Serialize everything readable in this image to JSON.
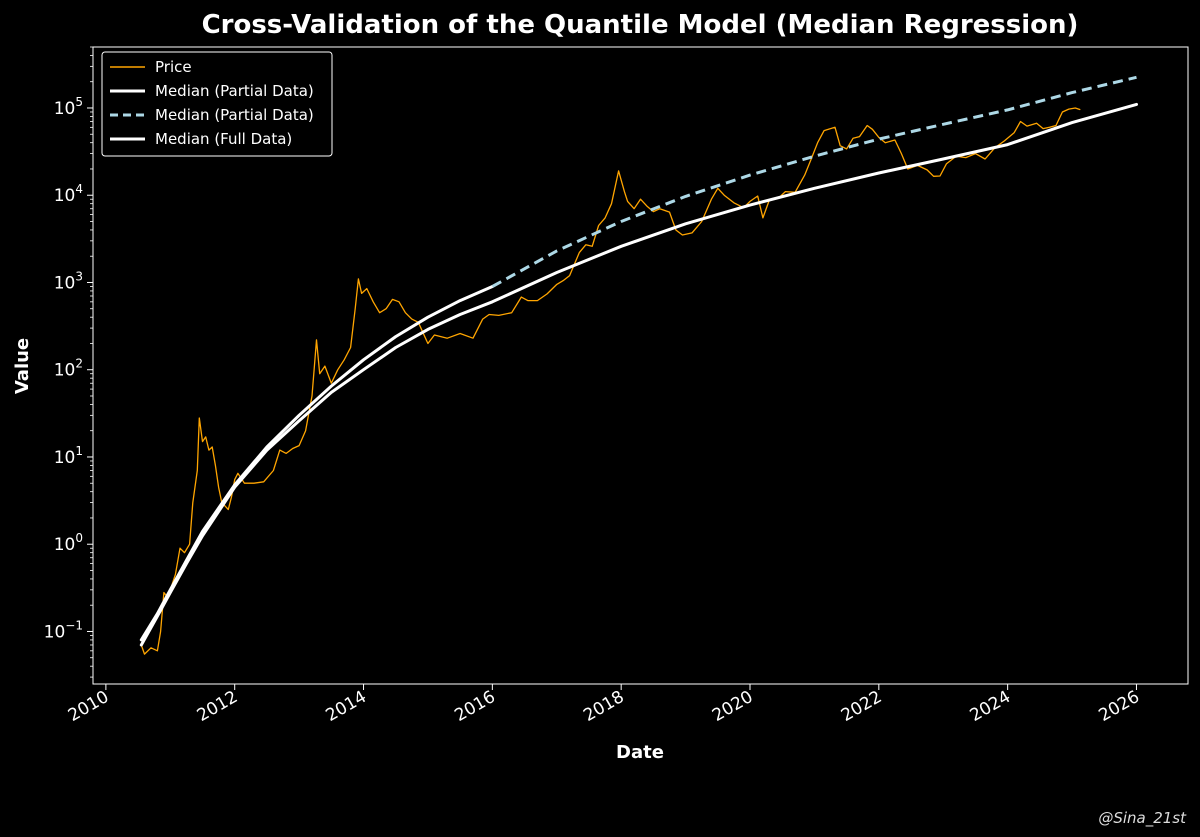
{
  "chart_data": {
    "type": "line",
    "title": "Cross-Validation of the Quantile Model (Median Regression)",
    "xlabel": "Date",
    "ylabel": "Value",
    "yscale": "log",
    "xlim": [
      2009.8,
      2026.8
    ],
    "ylim": [
      0.025,
      500000
    ],
    "x_ticks": [
      {
        "value": 2010,
        "label": "2010"
      },
      {
        "value": 2012,
        "label": "2012"
      },
      {
        "value": 2014,
        "label": "2014"
      },
      {
        "value": 2016,
        "label": "2016"
      },
      {
        "value": 2018,
        "label": "2018"
      },
      {
        "value": 2020,
        "label": "2020"
      },
      {
        "value": 2022,
        "label": "2022"
      },
      {
        "value": 2024,
        "label": "2024"
      },
      {
        "value": 2026,
        "label": "2026"
      }
    ],
    "y_ticks": [
      {
        "value": 0.1,
        "base": "10",
        "exp": "−1"
      },
      {
        "value": 1,
        "base": "10",
        "exp": "0"
      },
      {
        "value": 10,
        "base": "10",
        "exp": "1"
      },
      {
        "value": 100,
        "base": "10",
        "exp": "2"
      },
      {
        "value": 1000,
        "base": "10",
        "exp": "3"
      },
      {
        "value": 10000,
        "base": "10",
        "exp": "4"
      },
      {
        "value": 100000,
        "base": "10",
        "exp": "5"
      }
    ],
    "legend": {
      "position": "upper-left",
      "entries": [
        {
          "label": "Price",
          "color": "#ffa500",
          "style": "solid-thin"
        },
        {
          "label": "Median (Partial Data)",
          "color": "#ffffff",
          "style": "solid"
        },
        {
          "label": "Median (Partial Data)",
          "color": "#add8e6",
          "style": "dashed"
        },
        {
          "label": "Median (Full Data)",
          "color": "#ffffff",
          "style": "solid"
        }
      ]
    },
    "series": [
      {
        "name": "Price",
        "color": "#ffa500",
        "points": [
          [
            2010.55,
            0.07
          ],
          [
            2010.6,
            0.055
          ],
          [
            2010.7,
            0.065
          ],
          [
            2010.8,
            0.06
          ],
          [
            2010.85,
            0.1
          ],
          [
            2010.9,
            0.28
          ],
          [
            2010.95,
            0.25
          ],
          [
            2011.0,
            0.3
          ],
          [
            2011.08,
            0.45
          ],
          [
            2011.15,
            0.9
          ],
          [
            2011.22,
            0.8
          ],
          [
            2011.3,
            1.0
          ],
          [
            2011.35,
            3.0
          ],
          [
            2011.42,
            7.0
          ],
          [
            2011.45,
            28.0
          ],
          [
            2011.5,
            15.0
          ],
          [
            2011.55,
            17.0
          ],
          [
            2011.6,
            12.0
          ],
          [
            2011.65,
            13.0
          ],
          [
            2011.7,
            8.0
          ],
          [
            2011.75,
            4.5
          ],
          [
            2011.8,
            3.0
          ],
          [
            2011.9,
            2.5
          ],
          [
            2011.95,
            3.5
          ],
          [
            2012.0,
            5.5
          ],
          [
            2012.05,
            6.5
          ],
          [
            2012.15,
            5.0
          ],
          [
            2012.3,
            5.0
          ],
          [
            2012.45,
            5.2
          ],
          [
            2012.6,
            7.0
          ],
          [
            2012.7,
            12.0
          ],
          [
            2012.8,
            11.0
          ],
          [
            2012.9,
            12.5
          ],
          [
            2013.0,
            13.5
          ],
          [
            2013.1,
            20.0
          ],
          [
            2013.2,
            50.0
          ],
          [
            2013.27,
            220.0
          ],
          [
            2013.32,
            90.0
          ],
          [
            2013.4,
            110.0
          ],
          [
            2013.5,
            70.0
          ],
          [
            2013.6,
            100.0
          ],
          [
            2013.7,
            130.0
          ],
          [
            2013.8,
            180.0
          ],
          [
            2013.87,
            500.0
          ],
          [
            2013.92,
            1100.0
          ],
          [
            2013.97,
            750.0
          ],
          [
            2014.05,
            850.0
          ],
          [
            2014.15,
            600.0
          ],
          [
            2014.25,
            450.0
          ],
          [
            2014.35,
            500.0
          ],
          [
            2014.45,
            640.0
          ],
          [
            2014.55,
            600.0
          ],
          [
            2014.65,
            450.0
          ],
          [
            2014.75,
            380.0
          ],
          [
            2014.85,
            350.0
          ],
          [
            2015.0,
            200.0
          ],
          [
            2015.1,
            250.0
          ],
          [
            2015.3,
            230.0
          ],
          [
            2015.5,
            260.0
          ],
          [
            2015.7,
            230.0
          ],
          [
            2015.85,
            380.0
          ],
          [
            2015.95,
            430.0
          ],
          [
            2016.1,
            420.0
          ],
          [
            2016.3,
            450.0
          ],
          [
            2016.45,
            680.0
          ],
          [
            2016.55,
            620.0
          ],
          [
            2016.7,
            620.0
          ],
          [
            2016.85,
            740.0
          ],
          [
            2017.0,
            950.0
          ],
          [
            2017.1,
            1050.0
          ],
          [
            2017.2,
            1200.0
          ],
          [
            2017.35,
            2200.0
          ],
          [
            2017.45,
            2700.0
          ],
          [
            2017.55,
            2600.0
          ],
          [
            2017.65,
            4500.0
          ],
          [
            2017.75,
            5500.0
          ],
          [
            2017.85,
            8000.0
          ],
          [
            2017.96,
            19000.0
          ],
          [
            2018.05,
            11000.0
          ],
          [
            2018.1,
            8500.0
          ],
          [
            2018.2,
            7000.0
          ],
          [
            2018.3,
            9000.0
          ],
          [
            2018.4,
            7500.0
          ],
          [
            2018.5,
            6500.0
          ],
          [
            2018.6,
            7000.0
          ],
          [
            2018.75,
            6400.0
          ],
          [
            2018.85,
            4000.0
          ],
          [
            2018.95,
            3500.0
          ],
          [
            2019.1,
            3700.0
          ],
          [
            2019.25,
            5000.0
          ],
          [
            2019.4,
            9000.0
          ],
          [
            2019.5,
            12000.0
          ],
          [
            2019.6,
            10000.0
          ],
          [
            2019.75,
            8200.0
          ],
          [
            2019.9,
            7200.0
          ],
          [
            2020.0,
            8500.0
          ],
          [
            2020.12,
            9800.0
          ],
          [
            2020.2,
            5500.0
          ],
          [
            2020.3,
            8800.0
          ],
          [
            2020.45,
            9400.0
          ],
          [
            2020.55,
            11000.0
          ],
          [
            2020.7,
            10800.0
          ],
          [
            2020.85,
            17000.0
          ],
          [
            2020.95,
            26000.0
          ],
          [
            2021.05,
            40000.0
          ],
          [
            2021.15,
            55000.0
          ],
          [
            2021.25,
            58000.0
          ],
          [
            2021.32,
            60000.0
          ],
          [
            2021.4,
            37000.0
          ],
          [
            2021.5,
            34000.0
          ],
          [
            2021.6,
            45000.0
          ],
          [
            2021.7,
            47000.0
          ],
          [
            2021.82,
            63000.0
          ],
          [
            2021.9,
            57000.0
          ],
          [
            2022.0,
            46000.0
          ],
          [
            2022.1,
            40000.0
          ],
          [
            2022.25,
            43000.0
          ],
          [
            2022.35,
            30000.0
          ],
          [
            2022.45,
            20000.0
          ],
          [
            2022.6,
            22000.0
          ],
          [
            2022.75,
            19500.0
          ],
          [
            2022.85,
            16500.0
          ],
          [
            2022.95,
            16600.0
          ],
          [
            2023.05,
            23000.0
          ],
          [
            2023.2,
            28000.0
          ],
          [
            2023.35,
            27000.0
          ],
          [
            2023.5,
            30000.0
          ],
          [
            2023.65,
            26000.0
          ],
          [
            2023.8,
            35000.0
          ],
          [
            2023.95,
            42000.0
          ],
          [
            2024.1,
            52000.0
          ],
          [
            2024.2,
            70000.0
          ],
          [
            2024.3,
            62000.0
          ],
          [
            2024.45,
            67000.0
          ],
          [
            2024.55,
            58000.0
          ],
          [
            2024.65,
            60000.0
          ],
          [
            2024.75,
            63000.0
          ],
          [
            2024.85,
            90000.0
          ],
          [
            2024.95,
            97000.0
          ],
          [
            2025.05,
            100000.0
          ],
          [
            2025.12,
            96000.0
          ]
        ]
      },
      {
        "name": "Median (Partial Data)",
        "color": "#ffffff",
        "style": "solid",
        "points": [
          [
            2010.55,
            0.08
          ],
          [
            2010.8,
            0.16
          ],
          [
            2011.0,
            0.3
          ],
          [
            2011.25,
            0.65
          ],
          [
            2011.5,
            1.4
          ],
          [
            2012.0,
            4.8
          ],
          [
            2012.5,
            13.0
          ],
          [
            2013.0,
            30.0
          ],
          [
            2013.5,
            65.0
          ],
          [
            2014.0,
            130.0
          ],
          [
            2014.5,
            240.0
          ],
          [
            2015.0,
            400.0
          ],
          [
            2015.5,
            620.0
          ],
          [
            2016.0,
            900.0
          ]
        ]
      },
      {
        "name": "Median (Partial Data)",
        "color": "#add8e6",
        "style": "dashed",
        "points": [
          [
            2016.0,
            900.0
          ],
          [
            2017.0,
            2300.0
          ],
          [
            2018.0,
            5000.0
          ],
          [
            2019.0,
            9700.0
          ],
          [
            2020.0,
            17000.0
          ],
          [
            2021.0,
            28000.0
          ],
          [
            2022.0,
            44000.0
          ],
          [
            2023.0,
            65000.0
          ],
          [
            2024.0,
            95000.0
          ],
          [
            2025.0,
            150000.0
          ],
          [
            2026.0,
            225000.0
          ]
        ]
      },
      {
        "name": "Median (Full Data)",
        "color": "#ffffff",
        "style": "solid",
        "points": [
          [
            2010.55,
            0.07
          ],
          [
            2010.8,
            0.15
          ],
          [
            2011.0,
            0.28
          ],
          [
            2011.25,
            0.6
          ],
          [
            2011.5,
            1.25
          ],
          [
            2012.0,
            4.5
          ],
          [
            2012.5,
            12.0
          ],
          [
            2013.0,
            26.0
          ],
          [
            2013.5,
            55.0
          ],
          [
            2014.0,
            100.0
          ],
          [
            2014.5,
            180.0
          ],
          [
            2015.0,
            290.0
          ],
          [
            2015.5,
            430.0
          ],
          [
            2016.0,
            600.0
          ],
          [
            2017.0,
            1300.0
          ],
          [
            2018.0,
            2600.0
          ],
          [
            2019.0,
            4700.0
          ],
          [
            2020.0,
            7700.0
          ],
          [
            2021.0,
            12000.0
          ],
          [
            2022.0,
            18000.0
          ],
          [
            2023.0,
            26000.0
          ],
          [
            2024.0,
            38000.0
          ],
          [
            2025.0,
            68000.0
          ],
          [
            2026.0,
            110000.0
          ]
        ]
      }
    ]
  },
  "credit": "@Sina_21st"
}
